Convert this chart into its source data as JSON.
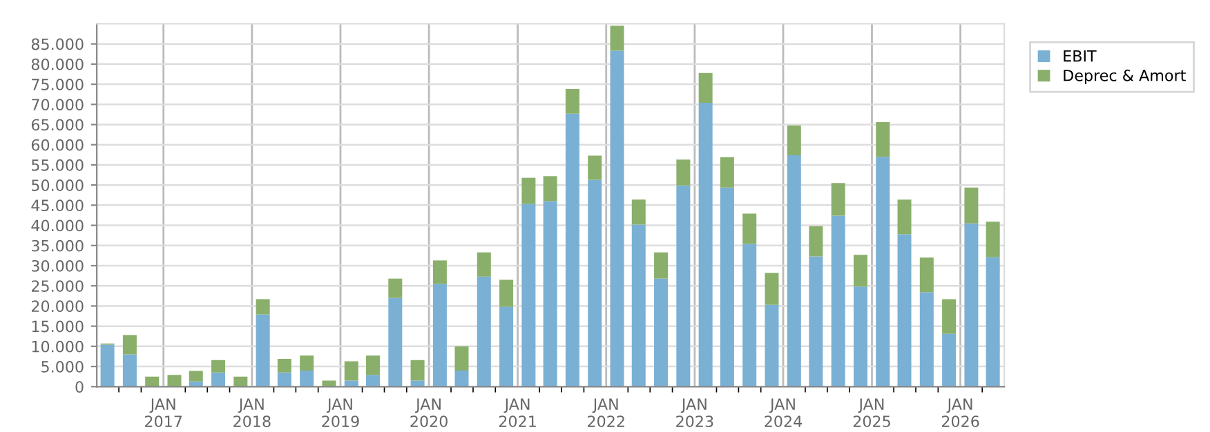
{
  "chart_data": {
    "type": "bar",
    "stacked": true,
    "x": [
      "2016-05-15",
      "2016-08-15",
      "2016-11-15",
      "2017-02-15",
      "2017-05-15",
      "2017-08-15",
      "2017-11-15",
      "2018-02-15",
      "2018-05-15",
      "2018-08-15",
      "2018-11-15",
      "2019-02-15",
      "2019-05-15",
      "2019-08-15",
      "2019-11-15",
      "2020-02-15",
      "2020-05-15",
      "2020-08-15",
      "2020-11-15",
      "2021-02-15",
      "2021-05-15",
      "2021-08-15",
      "2021-11-15",
      "2022-02-15",
      "2022-05-15",
      "2022-08-15",
      "2022-11-15",
      "2023-02-15",
      "2023-05-15",
      "2023-08-15",
      "2023-11-15",
      "2024-02-15",
      "2024-05-15",
      "2024-08-15",
      "2024-11-15",
      "2025-02-15",
      "2025-05-15",
      "2025-08-15",
      "2025-11-15",
      "2026-02-15",
      "2026-05-15"
    ],
    "series": [
      {
        "name": "EBIT",
        "color": "#7ab0d4",
        "values": [
          10400,
          8000,
          0,
          0,
          1300,
          3500,
          0,
          17900,
          3500,
          4000,
          0,
          1500,
          2900,
          22000,
          1500,
          25500,
          4000,
          27300,
          19800,
          45300,
          46000,
          67700,
          51300,
          83300,
          40200,
          26800,
          49900,
          70400,
          49400,
          35400,
          20300,
          57400,
          32300,
          42400,
          24800,
          57000,
          37800,
          23400,
          13100,
          40500,
          32100
        ]
      },
      {
        "name": "Deprec & Amort",
        "color": "#8aaf6a",
        "values": [
          300,
          4800,
          2500,
          2900,
          2600,
          3100,
          2500,
          3800,
          3400,
          3700,
          1500,
          4800,
          4800,
          4800,
          5100,
          5800,
          6000,
          6000,
          6700,
          6500,
          6200,
          6100,
          6000,
          6200,
          6200,
          6500,
          6400,
          7400,
          7500,
          7500,
          7900,
          7400,
          7500,
          8100,
          7900,
          8600,
          8600,
          8600,
          8600,
          8900,
          8800
        ]
      }
    ],
    "xlim": [
      "2016-04-01",
      "2026-07-01"
    ],
    "xticks": [
      {
        "value": "2016-07-01",
        "label": null
      },
      {
        "value": "2016-10-01",
        "label": null
      },
      {
        "value": "2017-01-01",
        "label": "JAN\n2017"
      },
      {
        "value": "2017-04-01",
        "label": null
      },
      {
        "value": "2017-07-01",
        "label": null
      },
      {
        "value": "2017-10-01",
        "label": null
      },
      {
        "value": "2018-01-01",
        "label": "JAN\n2018"
      },
      {
        "value": "2018-04-01",
        "label": null
      },
      {
        "value": "2018-07-01",
        "label": null
      },
      {
        "value": "2018-10-01",
        "label": null
      },
      {
        "value": "2019-01-01",
        "label": "JAN\n2019"
      },
      {
        "value": "2019-04-01",
        "label": null
      },
      {
        "value": "2019-07-01",
        "label": null
      },
      {
        "value": "2019-10-01",
        "label": null
      },
      {
        "value": "2020-01-01",
        "label": "JAN\n2020"
      },
      {
        "value": "2020-04-01",
        "label": null
      },
      {
        "value": "2020-07-01",
        "label": null
      },
      {
        "value": "2020-10-01",
        "label": null
      },
      {
        "value": "2021-01-01",
        "label": "JAN\n2021"
      },
      {
        "value": "2021-04-01",
        "label": null
      },
      {
        "value": "2021-07-01",
        "label": null
      },
      {
        "value": "2021-10-01",
        "label": null
      },
      {
        "value": "2022-01-01",
        "label": "JAN\n2022"
      },
      {
        "value": "2022-04-01",
        "label": null
      },
      {
        "value": "2022-07-01",
        "label": null
      },
      {
        "value": "2022-10-01",
        "label": null
      },
      {
        "value": "2023-01-01",
        "label": "JAN\n2023"
      },
      {
        "value": "2023-04-01",
        "label": null
      },
      {
        "value": "2023-07-01",
        "label": null
      },
      {
        "value": "2023-10-01",
        "label": null
      },
      {
        "value": "2024-01-01",
        "label": "JAN\n2024"
      },
      {
        "value": "2024-04-01",
        "label": null
      },
      {
        "value": "2024-07-01",
        "label": null
      },
      {
        "value": "2024-10-01",
        "label": null
      },
      {
        "value": "2025-01-01",
        "label": "JAN\n2025"
      },
      {
        "value": "2025-04-01",
        "label": null
      },
      {
        "value": "2025-07-01",
        "label": null
      },
      {
        "value": "2025-10-01",
        "label": null
      },
      {
        "value": "2026-01-01",
        "label": "JAN\n2026"
      },
      {
        "value": "2026-04-01",
        "label": null
      }
    ],
    "ylim": [
      0,
      90000
    ],
    "yticks": [
      0,
      {
        "value": 5000,
        "label": "5.000"
      },
      {
        "value": 10000,
        "label": "10.000"
      },
      {
        "value": 15000,
        "label": "15.000"
      },
      {
        "value": 20000,
        "label": "20.000"
      },
      {
        "value": 25000,
        "label": "25.000"
      },
      {
        "value": 30000,
        "label": "30.000"
      },
      {
        "value": 35000,
        "label": "35.000"
      },
      {
        "value": 40000,
        "label": "40.000"
      },
      {
        "value": 45000,
        "label": "45.000"
      },
      {
        "value": 50000,
        "label": "50.000"
      },
      {
        "value": 55000,
        "label": "55.000"
      },
      {
        "value": 60000,
        "label": "60.000"
      },
      {
        "value": 65000,
        "label": "65.000"
      },
      {
        "value": 70000,
        "label": "70.000"
      },
      {
        "value": 75000,
        "label": "75.000"
      },
      {
        "value": 80000,
        "label": "80.000"
      },
      {
        "value": 85000,
        "label": "85.000"
      }
    ],
    "grid": true,
    "legend": "top right"
  }
}
